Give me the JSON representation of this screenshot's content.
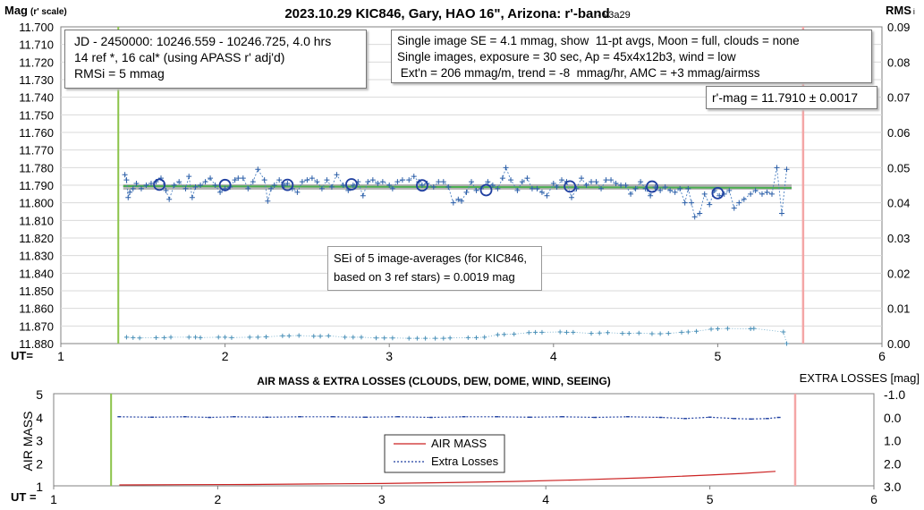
{
  "chart_data": [
    {
      "type": "scatter",
      "title": "2023.10.29 KIC846, Gary, HAO 16\", Arizona: r'-band",
      "version_tag": "- v3a29",
      "ylabel": "Mag",
      "ylabel_sub": "(r' scale)",
      "y2label": "RMS",
      "y2label_sub": "i",
      "xlabel": "UT=",
      "xlim": [
        1,
        6
      ],
      "ylim": [
        11.7,
        11.88
      ],
      "y_inverted": true,
      "y2lim": [
        0,
        0.09
      ],
      "x_ticks": [
        "1",
        "2",
        "3",
        "4",
        "5",
        "6"
      ],
      "y_ticks": [
        "11.700",
        "11.710",
        "11.720",
        "11.730",
        "11.740",
        "11.750",
        "11.760",
        "11.770",
        "11.780",
        "11.790",
        "11.800",
        "11.810",
        "11.820",
        "11.830",
        "11.840",
        "11.850",
        "11.860",
        "11.870",
        "11.880"
      ],
      "y2_ticks": [
        "0.09",
        "0.08",
        "0.07",
        "0.06",
        "0.05",
        "0.04",
        "0.03",
        "0.02",
        "0.01",
        "0.00"
      ],
      "grid": true,
      "info_box_left": [
        "JD - 2450000: 10246.559 - 10246.725, 4.0 hrs",
        "14 ref *, 16 cal* (using APASS r' adj'd)",
        "RMSi = 5 mmag"
      ],
      "info_box_right": [
        "Single image SE = 4.1 mmag, show  11-pt avgs, Moon = full, clouds = none",
        "Single images, exposure = 30 sec, Ap = 45x4x12b3, wind = low",
        " Ext'n = 206 mmag/m, trend = -8  mmag/hr, AMC = +3 mmag/airmss"
      ],
      "result_box": "r'-mag = 11.7910 ± 0.0017",
      "sei_box": [
        "SEi of 5 image-averages (for KIC846,",
        "based on 3 ref stars) = 0.0019 mag"
      ],
      "mean_mag": 11.791,
      "trend_start": [
        1.38,
        11.7905
      ],
      "trend_end": [
        5.45,
        11.7915
      ],
      "vertical_markers": {
        "start": 1.35,
        "end": 5.52
      },
      "series": [
        {
          "kind": "single-images",
          "x": [
            1.39,
            1.4,
            1.41,
            1.42,
            1.44,
            1.46,
            1.49,
            1.52,
            1.55,
            1.58,
            1.61,
            1.64,
            1.66,
            1.69,
            1.72,
            1.76,
            1.78,
            1.8,
            1.82,
            1.85,
            1.88,
            1.91,
            1.94,
            1.97,
            2.0,
            2.03,
            2.06,
            2.08,
            2.11,
            2.14,
            2.17,
            2.2,
            2.24,
            2.26,
            2.28,
            2.3,
            2.33,
            2.36,
            2.38,
            2.41,
            2.44,
            2.47,
            2.5,
            2.53,
            2.56,
            2.59,
            2.62,
            2.65,
            2.68,
            2.72,
            2.75,
            2.78,
            2.81,
            2.84,
            2.87,
            2.9,
            2.93,
            2.96,
            3.0,
            3.02,
            3.05,
            3.08,
            3.12,
            3.15,
            3.18,
            3.2,
            3.23,
            3.27,
            3.3,
            3.33,
            3.36,
            3.39,
            3.42,
            3.44,
            3.47,
            3.5,
            3.53,
            3.56,
            3.6,
            3.63,
            3.66,
            3.69,
            3.71,
            3.74,
            3.78,
            3.81,
            3.84,
            3.87,
            3.9,
            3.93,
            3.96,
            4.0,
            4.02,
            4.05,
            4.08,
            4.11,
            4.14,
            4.17,
            4.2,
            4.23,
            4.26,
            4.29,
            4.32,
            4.35,
            4.38,
            4.41,
            4.44,
            4.47,
            4.5,
            4.53,
            4.56,
            4.59,
            4.62,
            4.65,
            4.68,
            4.71,
            4.74,
            4.77,
            4.8,
            4.82,
            4.84,
            4.86,
            4.89,
            4.92,
            4.95,
            4.98,
            5.01,
            5.04,
            5.07,
            5.1,
            5.13,
            5.16,
            5.2,
            5.23,
            5.27,
            5.3,
            5.33,
            5.36,
            5.39,
            5.42
          ],
          "y": [
            11.784,
            11.787,
            11.797,
            11.794,
            11.792,
            11.789,
            11.792,
            11.79,
            11.789,
            11.788,
            11.786,
            11.793,
            11.798,
            11.79,
            11.788,
            11.792,
            11.785,
            11.797,
            11.791,
            11.79,
            11.788,
            11.786,
            11.79,
            11.794,
            11.792,
            11.791,
            11.787,
            11.786,
            11.786,
            11.792,
            11.788,
            11.781,
            11.787,
            11.799,
            11.792,
            11.79,
            11.787,
            11.79,
            11.789,
            11.792,
            11.794,
            11.788,
            11.787,
            11.786,
            11.788,
            11.792,
            11.787,
            11.791,
            11.784,
            11.79,
            11.793,
            11.79,
            11.788,
            11.796,
            11.788,
            11.787,
            11.789,
            11.788,
            11.79,
            11.792,
            11.788,
            11.787,
            11.787,
            11.785,
            11.788,
            11.79,
            11.789,
            11.791,
            11.788,
            11.788,
            11.791,
            11.8,
            11.798,
            11.799,
            11.794,
            11.788,
            11.793,
            11.792,
            11.788,
            11.79,
            11.792,
            11.786,
            11.78,
            11.787,
            11.793,
            11.788,
            11.786,
            11.792,
            11.792,
            11.794,
            11.796,
            11.789,
            11.791,
            11.787,
            11.788,
            11.797,
            11.792,
            11.786,
            11.79,
            11.788,
            11.788,
            11.792,
            11.787,
            11.787,
            11.789,
            11.79,
            11.79,
            11.795,
            11.792,
            11.788,
            11.792,
            11.796,
            11.791,
            11.793,
            11.791,
            11.793,
            11.794,
            11.792,
            11.8,
            11.792,
            11.8,
            11.808,
            11.806,
            11.795,
            11.801,
            11.793,
            11.796,
            11.795,
            11.793,
            11.803,
            11.8,
            11.798,
            11.795,
            11.793,
            11.795,
            11.794,
            11.795,
            11.78,
            11.806,
            11.781
          ]
        },
        {
          "kind": "11-pt-averages",
          "x": [
            1.6,
            2.0,
            2.38,
            2.77,
            3.2,
            3.59,
            4.1,
            4.6,
            5.0
          ],
          "y": [
            11.7897,
            11.7899,
            11.7898,
            11.7895,
            11.7901,
            11.7928,
            11.7907,
            11.7908,
            11.7945
          ]
        },
        {
          "kind": "rms-i",
          "axis": "right",
          "x": [
            1.4,
            1.44,
            1.48,
            1.58,
            1.63,
            1.67,
            1.78,
            1.82,
            1.85,
            1.96,
            2.0,
            2.04,
            2.15,
            2.2,
            2.25,
            2.35,
            2.39,
            2.45,
            2.54,
            2.58,
            2.63,
            2.73,
            2.78,
            2.83,
            2.92,
            2.97,
            3.02,
            3.12,
            3.17,
            3.22,
            3.28,
            3.33,
            3.37,
            3.48,
            3.53,
            3.58,
            3.66,
            3.7,
            3.76,
            3.85,
            3.89,
            3.93,
            4.04,
            4.08,
            4.12,
            4.23,
            4.28,
            4.33,
            4.42,
            4.46,
            4.52,
            4.6,
            4.65,
            4.7,
            4.78,
            4.82,
            4.87,
            4.96,
            5.0,
            5.06,
            5.2,
            5.22,
            5.4,
            5.42
          ],
          "y": [
            0.0018,
            0.0017,
            0.0016,
            0.0017,
            0.0017,
            0.0018,
            0.0018,
            0.0018,
            0.0017,
            0.0018,
            0.0018,
            0.0017,
            0.0018,
            0.0018,
            0.0019,
            0.0022,
            0.0022,
            0.0023,
            0.0021,
            0.0021,
            0.0022,
            0.0018,
            0.0018,
            0.0018,
            0.0016,
            0.0016,
            0.0016,
            0.0015,
            0.0015,
            0.0015,
            0.0015,
            0.0015,
            0.0016,
            0.0017,
            0.0017,
            0.0018,
            0.0025,
            0.0026,
            0.0027,
            0.0031,
            0.0032,
            0.0032,
            0.0033,
            0.0032,
            0.0032,
            0.0029,
            0.003,
            0.0031,
            0.0029,
            0.0029,
            0.003,
            0.0028,
            0.0028,
            0.0029,
            0.0032,
            0.0033,
            0.0035,
            0.0041,
            0.0042,
            0.0043,
            0.0042,
            0.0043,
            0.0033,
            0.0
          ]
        }
      ]
    },
    {
      "type": "line",
      "title": "AIR MASS & EXTRA LOSSES (CLOUDS, DEW, DOME, WIND, SEEING)",
      "ylabel": "AIR MASS",
      "y2label": "EXTRA LOSSES [mag]",
      "xlabel": "UT =",
      "xlim": [
        1,
        6
      ],
      "ylim": [
        1,
        5
      ],
      "y2lim": [
        -1.0,
        3.0
      ],
      "y2_inverted": true,
      "x_ticks": [
        "1",
        "2",
        "3",
        "4",
        "5",
        "6"
      ],
      "y_ticks": [
        "1",
        "2",
        "3",
        "4",
        "5"
      ],
      "y2_ticks": [
        "-1.0",
        "0.0",
        "1.0",
        "2.0",
        "3.0"
      ],
      "legend": "center",
      "vertical_markers": {
        "start": 1.35,
        "end": 5.52
      },
      "series": [
        {
          "name": "AIR MASS",
          "color": "#cc2222",
          "x": [
            1.4,
            1.8,
            2.2,
            2.6,
            3.0,
            3.4,
            3.8,
            4.2,
            4.6,
            5.0,
            5.2,
            5.4
          ],
          "y": [
            1.04,
            1.05,
            1.06,
            1.08,
            1.1,
            1.14,
            1.19,
            1.26,
            1.35,
            1.47,
            1.54,
            1.63
          ]
        },
        {
          "name": "Extra Losses",
          "color": "#1f3fa0",
          "axis": "right",
          "x": [
            1.4,
            1.6,
            1.8,
            1.95,
            2.1,
            2.3,
            2.5,
            2.7,
            2.9,
            3.1,
            3.3,
            3.5,
            3.7,
            3.9,
            4.1,
            4.3,
            4.5,
            4.7,
            4.85,
            5.0,
            5.15,
            5.25,
            5.35,
            5.42
          ],
          "y": [
            0.0,
            0.02,
            0.0,
            0.03,
            0.0,
            0.02,
            0.0,
            0.0,
            0.02,
            0.0,
            0.03,
            0.0,
            0.0,
            0.02,
            0.0,
            0.03,
            0.0,
            0.03,
            0.08,
            0.02,
            0.08,
            0.1,
            0.08,
            0.03
          ]
        }
      ]
    }
  ]
}
